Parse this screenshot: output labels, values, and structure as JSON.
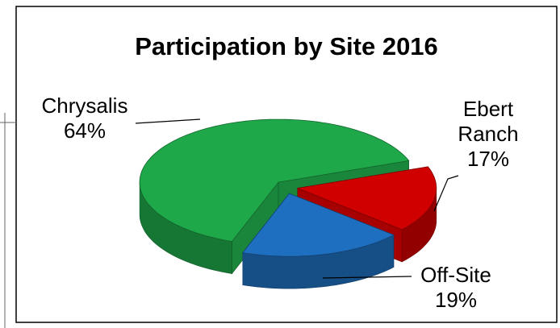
{
  "chart_data": {
    "type": "pie3d",
    "title": "Participation by Site 2016",
    "categories": [
      "Chrysalis",
      "Ebert Ranch",
      "Off-Site"
    ],
    "values": [
      64,
      17,
      19
    ],
    "value_labels": [
      "64%",
      "17%",
      "19%"
    ],
    "colors": [
      "#1fa84a",
      "#d00000",
      "#1f6fc0"
    ]
  }
}
